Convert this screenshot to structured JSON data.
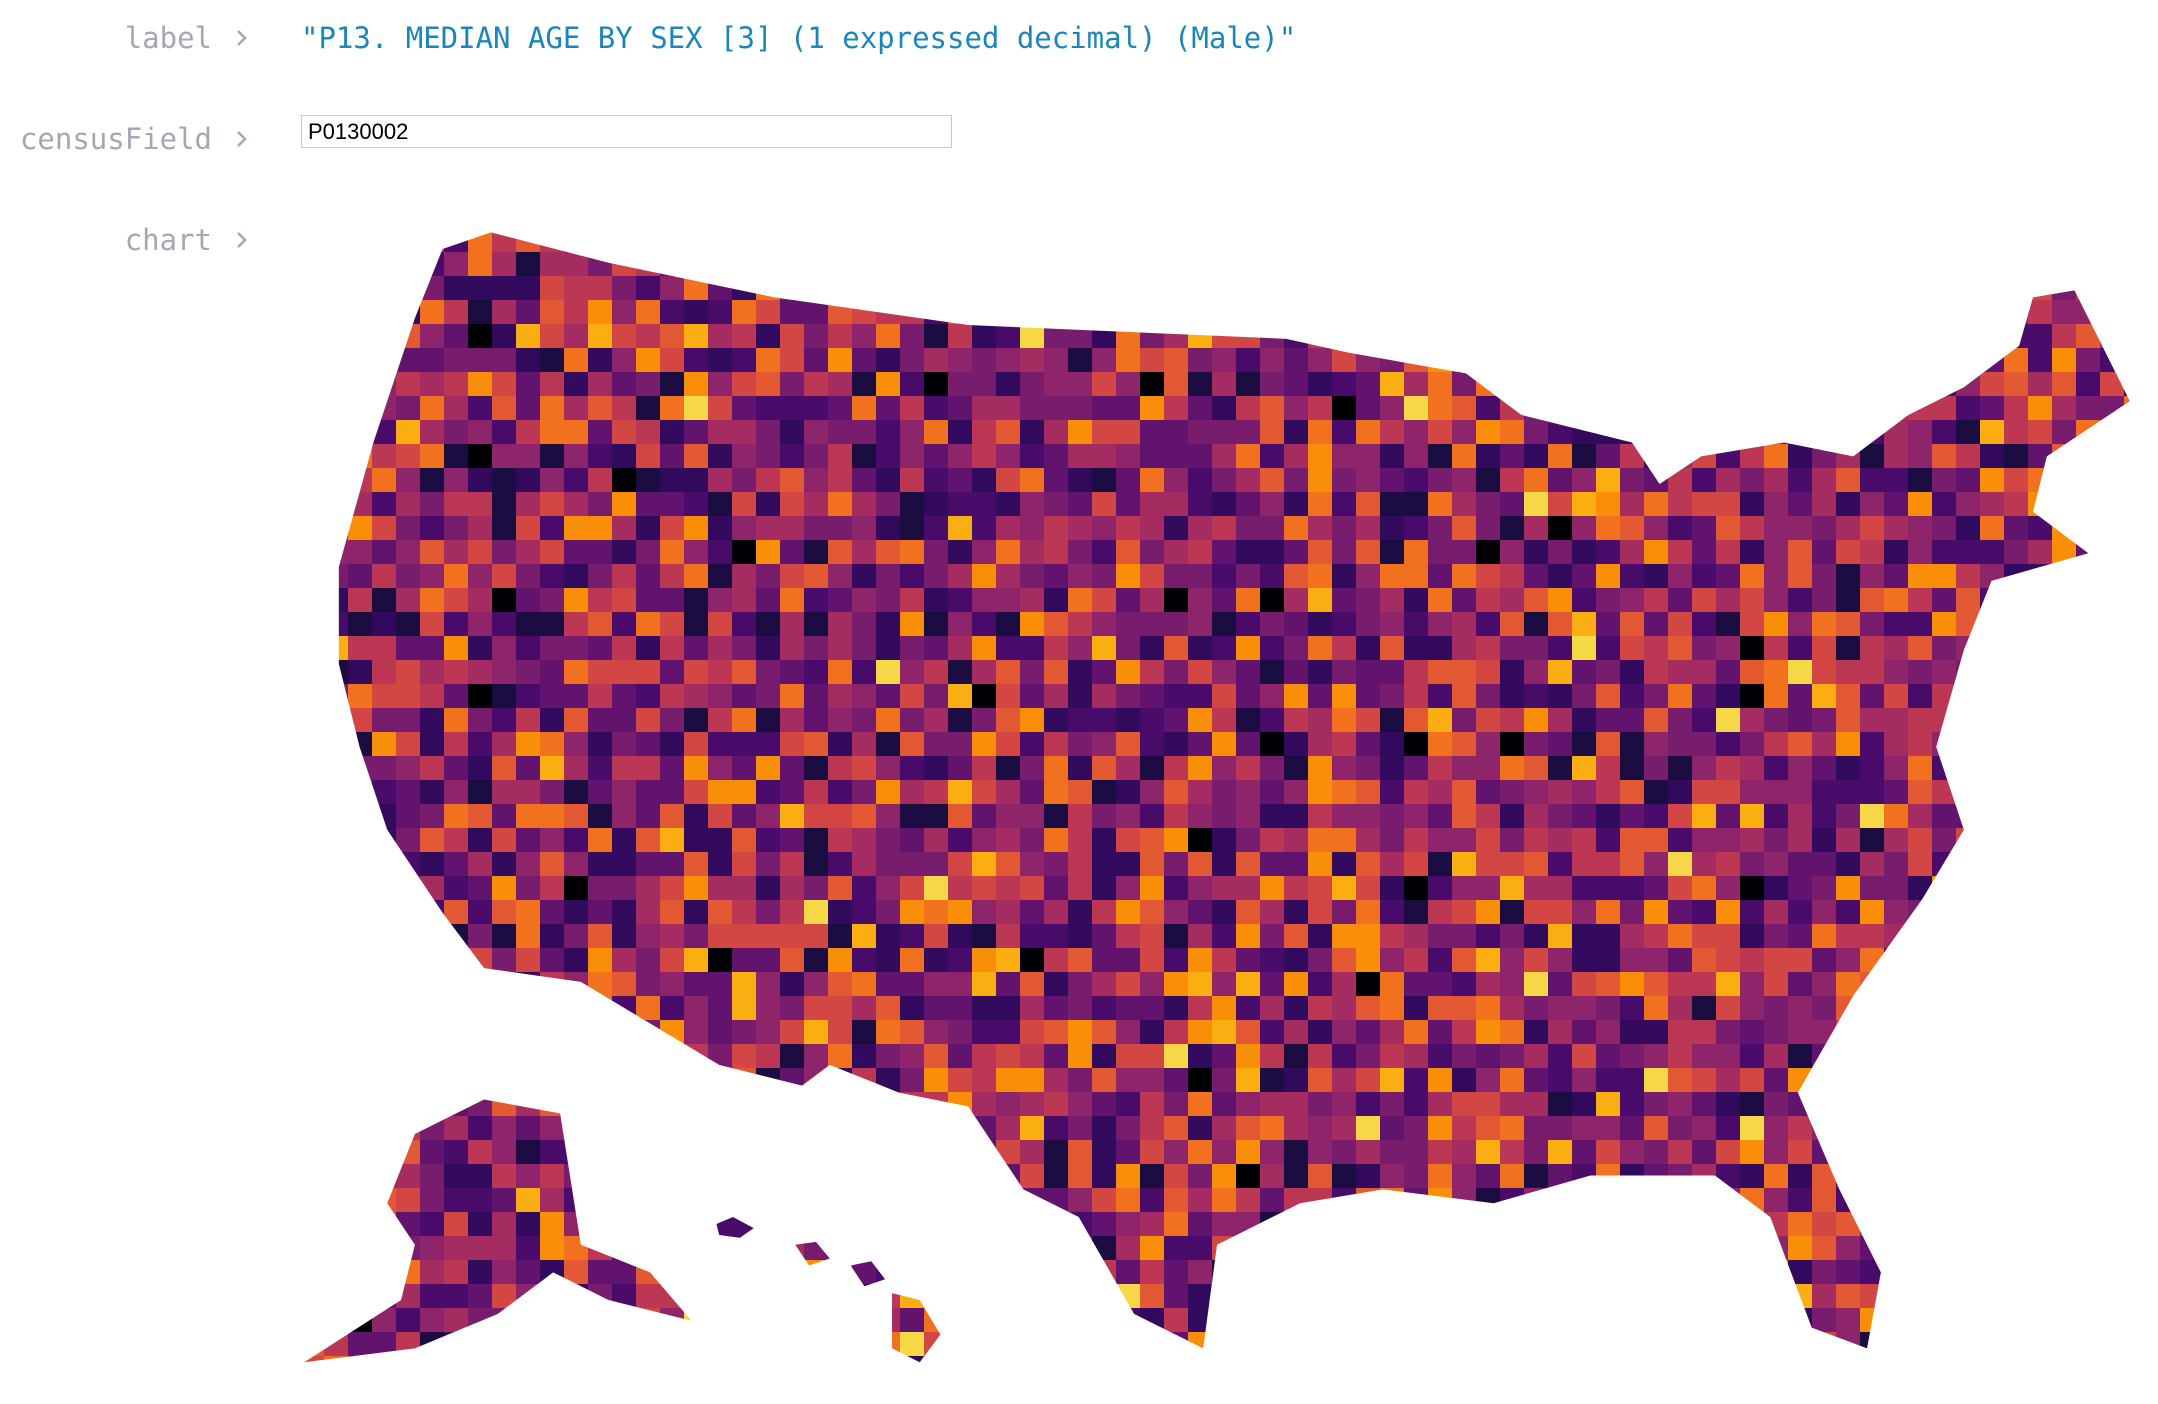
{
  "cells": [
    {
      "name": "label",
      "value": "\"P13. MEDIAN AGE BY SEX [3] (1 expressed decimal) (Male)\""
    },
    {
      "name": "censusField",
      "input_value": "P0130002"
    },
    {
      "name": "chart"
    }
  ]
}
